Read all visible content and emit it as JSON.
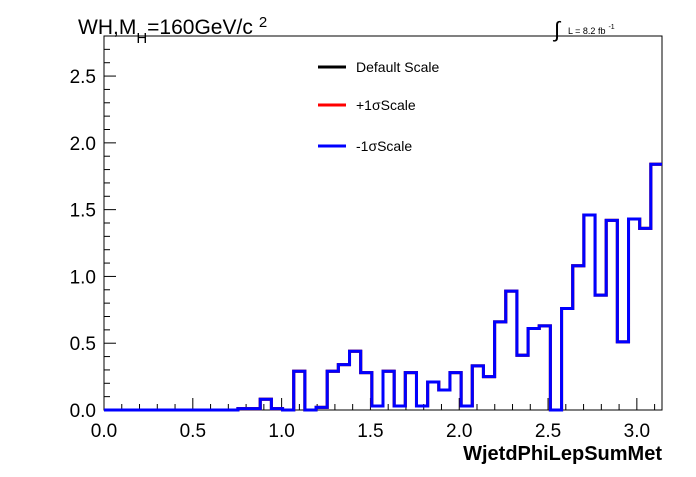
{
  "chart_data": {
    "type": "line",
    "title": {
      "main": "WH,M",
      "sub": "H",
      "rest": "=160GeV/c",
      "sup": "2"
    },
    "lumi": {
      "symbol": "∫",
      "text": "L = 8.2 fb",
      "sup": "-1"
    },
    "xlabel": "WjetdPhiLepSumMet",
    "ylabel": "",
    "xlim": [
      0,
      3.1416
    ],
    "ylim": [
      0,
      2.8
    ],
    "xticks": [
      "0.0",
      "0.5",
      "1.0",
      "1.5",
      "2.0",
      "2.5",
      "3.0"
    ],
    "xtick_values": [
      0,
      0.5,
      1.0,
      1.5,
      2.0,
      2.5,
      3.0
    ],
    "yticks": [
      "0.0",
      "0.5",
      "1.0",
      "1.5",
      "2.0",
      "2.5"
    ],
    "ytick_values": [
      0,
      0.5,
      1.0,
      1.5,
      2.0,
      2.5
    ],
    "grid": false,
    "legend_position": "top-center",
    "bins": 50,
    "series": [
      {
        "name": "Default Scale",
        "color": "#000000",
        "values": [
          0,
          0,
          0,
          0,
          0,
          0,
          0,
          0,
          0,
          0,
          0,
          0,
          0.01,
          0.01,
          0.08,
          0.01,
          0,
          0.29,
          0,
          0.02,
          0.29,
          0.34,
          0.44,
          0.28,
          0.03,
          0.29,
          0.03,
          0.28,
          0.03,
          0.21,
          0.15,
          0.28,
          0.03,
          0.33,
          0.25,
          0.66,
          0.89,
          0.41,
          0.61,
          0.63,
          0,
          0.76,
          1.08,
          1.46,
          0.86,
          1.42,
          0.51,
          1.43,
          1.36,
          1.84
        ]
      },
      {
        "name": "+1σScale",
        "color": "#ff0000",
        "values": [
          0,
          0,
          0,
          0,
          0,
          0,
          0,
          0,
          0,
          0,
          0,
          0,
          0.01,
          0.01,
          0.08,
          0.01,
          0,
          0.29,
          0,
          0.02,
          0.29,
          0.34,
          0.44,
          0.28,
          0.03,
          0.29,
          0.03,
          0.28,
          0.03,
          0.21,
          0.15,
          0.28,
          0.03,
          0.33,
          0.25,
          0.66,
          0.89,
          0.41,
          0.61,
          0.63,
          0,
          0.76,
          1.08,
          1.46,
          0.86,
          1.42,
          0.51,
          1.43,
          1.36,
          1.84
        ]
      },
      {
        "name": "-1σScale",
        "color": "#0000ff",
        "values": [
          0,
          0,
          0,
          0,
          0,
          0,
          0,
          0,
          0,
          0,
          0,
          0,
          0.01,
          0.01,
          0.08,
          0.01,
          0,
          0.29,
          0,
          0.02,
          0.29,
          0.34,
          0.44,
          0.28,
          0.03,
          0.29,
          0.03,
          0.28,
          0.03,
          0.21,
          0.15,
          0.28,
          0.03,
          0.33,
          0.25,
          0.66,
          0.89,
          0.41,
          0.61,
          0.63,
          0,
          0.76,
          1.08,
          1.46,
          0.86,
          1.42,
          0.51,
          1.43,
          1.36,
          1.84
        ]
      }
    ]
  }
}
